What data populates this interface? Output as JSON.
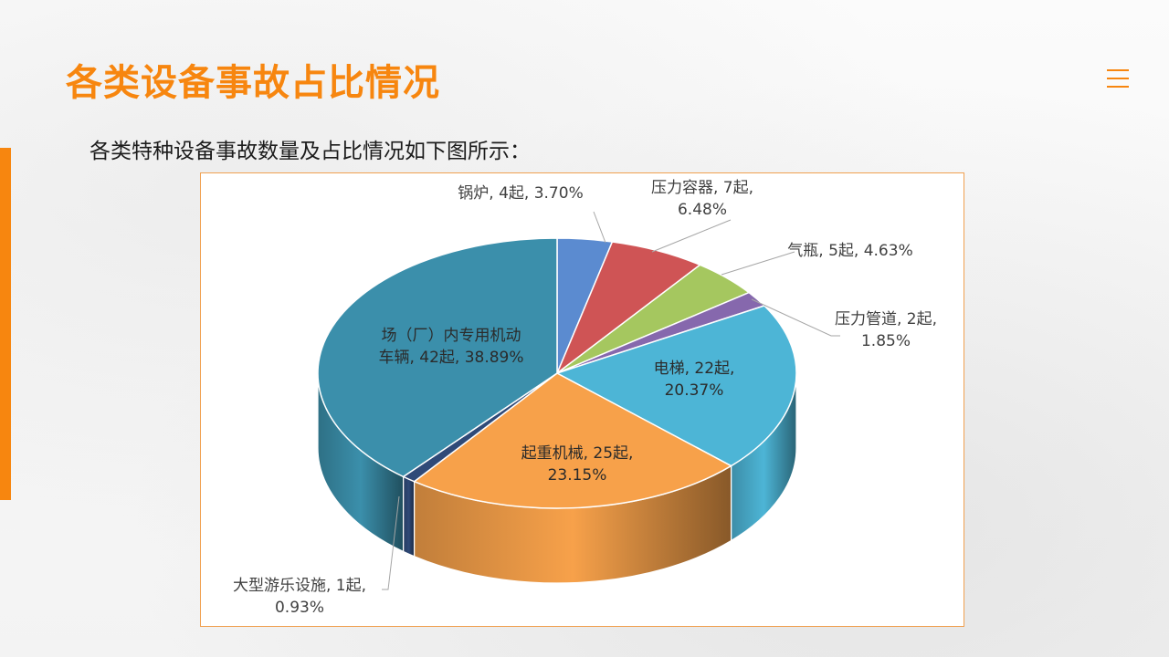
{
  "page": {
    "title": "各类设备事故占比情况",
    "subtitle": "各类特种设备事故数量及占比情况如下图所示：",
    "menu_icon": "hamburger-menu-icon"
  },
  "colors": {
    "accent": "#f7860f"
  },
  "chart_data": {
    "type": "pie",
    "style": "3d",
    "start_angle_deg": 90,
    "direction": "clockwise",
    "slices": [
      {
        "name": "锅炉",
        "count": 4,
        "percent": 3.7,
        "color": "#5b8bd0",
        "label_lines": [
          "锅炉, 4起, 3.70%"
        ]
      },
      {
        "name": "压力容器",
        "count": 7,
        "percent": 6.48,
        "color": "#cf5455",
        "label_lines": [
          "压力容器, 7起,",
          "6.48%"
        ]
      },
      {
        "name": "气瓶",
        "count": 5,
        "percent": 4.63,
        "color": "#a5c75f",
        "label_lines": [
          "气瓶, 5起, 4.63%"
        ]
      },
      {
        "name": "压力管道",
        "count": 2,
        "percent": 1.85,
        "color": "#8668ad",
        "label_lines": [
          "压力管道, 2起,",
          "1.85%"
        ]
      },
      {
        "name": "电梯",
        "count": 22,
        "percent": 20.37,
        "color": "#4db5d6",
        "label_lines": [
          "电梯, 22起,",
          "20.37%"
        ]
      },
      {
        "name": "起重机械",
        "count": 25,
        "percent": 23.15,
        "color": "#f7a14a",
        "label_lines": [
          "起重机械, 25起,",
          "23.15%"
        ]
      },
      {
        "name": "大型游乐设施",
        "count": 1,
        "percent": 0.93,
        "color": "#2f4a78",
        "label_lines": [
          "大型游乐设施, 1起,",
          "0.93%"
        ]
      },
      {
        "name": "场（厂）内专用机动车辆",
        "count": 42,
        "percent": 38.89,
        "color": "#3b8fab",
        "label_lines": [
          "场（厂）内专用机动",
          "车辆, 42起, 38.89%"
        ]
      }
    ]
  }
}
